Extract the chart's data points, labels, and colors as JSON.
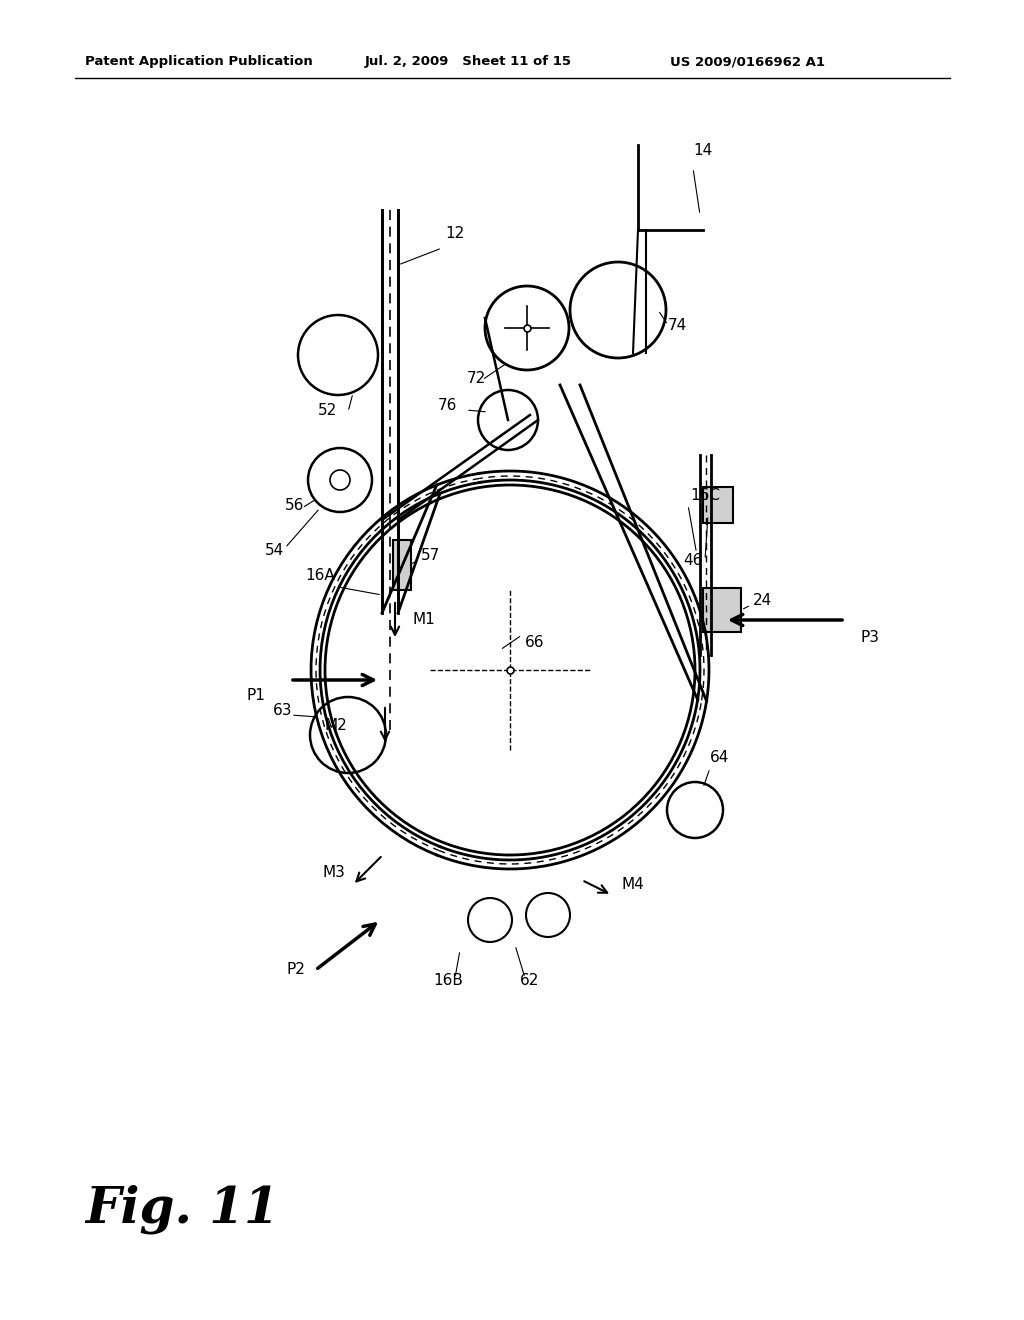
{
  "title_left": "Patent Application Publication",
  "title_mid": "Jul. 2, 2009   Sheet 11 of 15",
  "title_right": "US 2009/0166962 A1",
  "fig_label": "Fig. 11",
  "bg_color": "#ffffff",
  "line_color": "#000000"
}
